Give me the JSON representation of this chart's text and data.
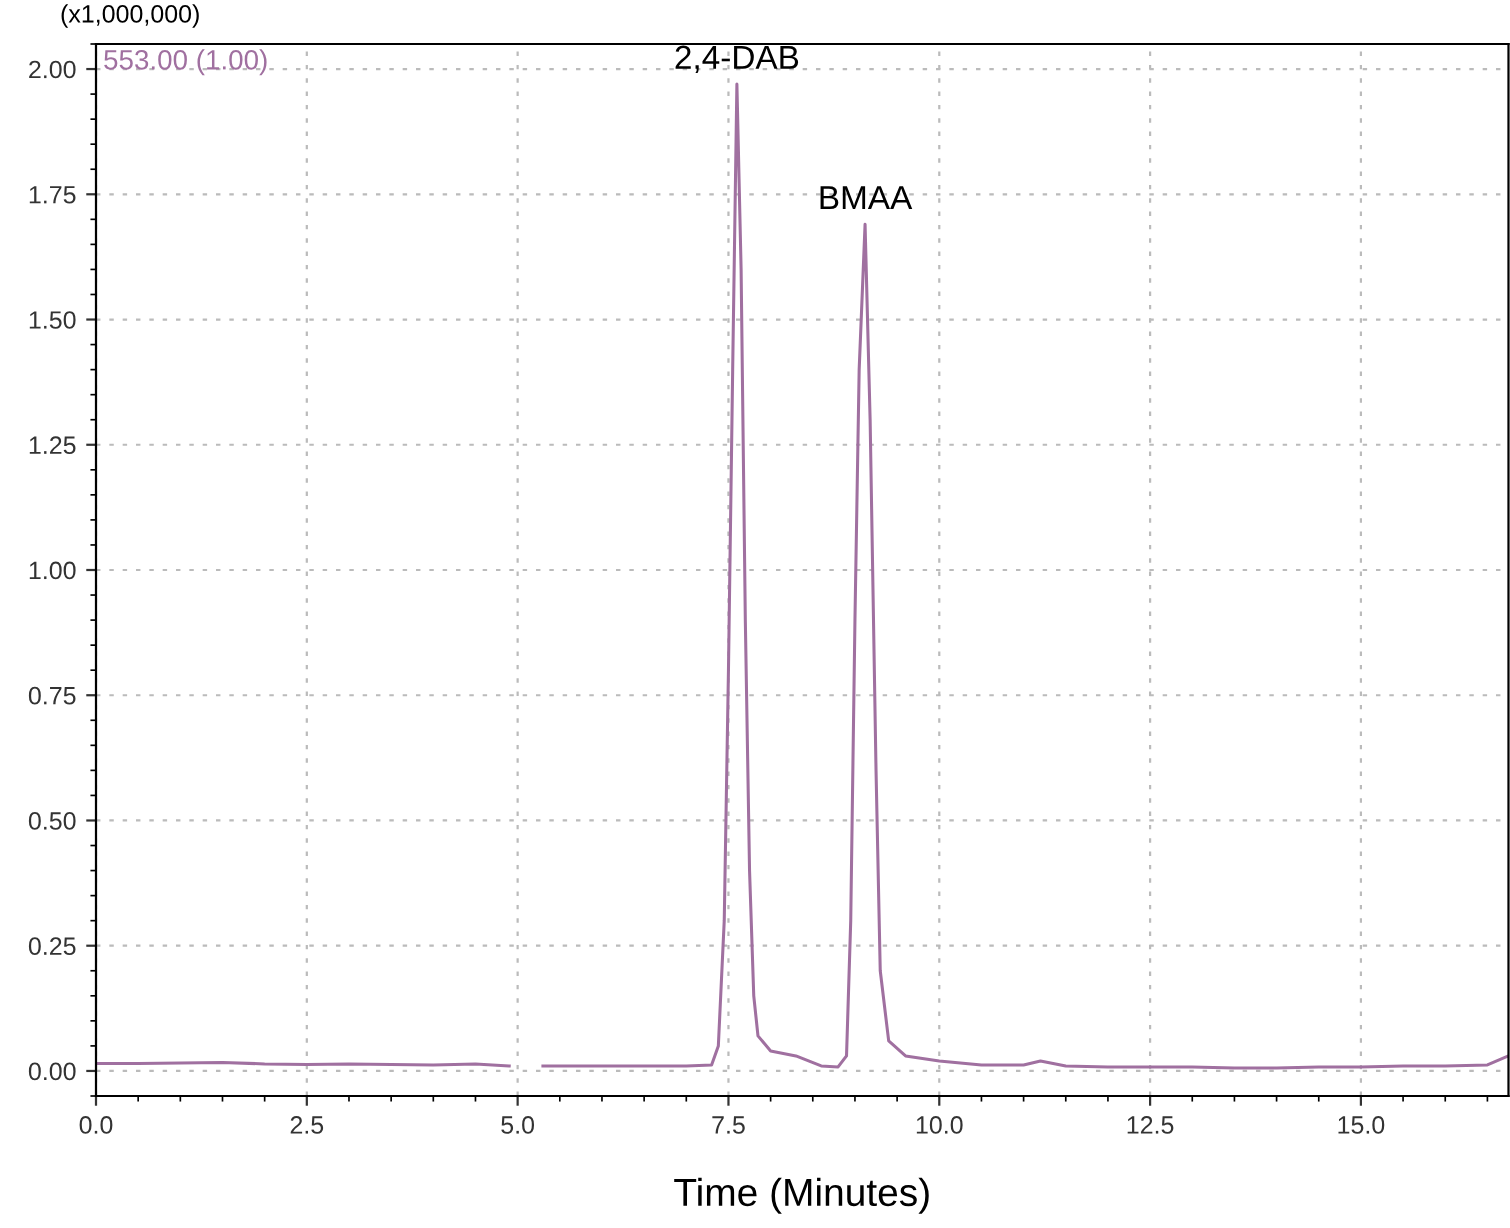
{
  "chart_data": {
    "type": "line",
    "xlabel": "Time (Minutes)",
    "annotations": [
      "(x1,000,000)",
      {
        "text": "2,4-DAB",
        "x": 7.6,
        "y": 1.97
      },
      {
        "text": "BMAA",
        "x": 9.12,
        "y": 1.69
      }
    ],
    "x": [
      0,
      0.5,
      1,
      1.5,
      2,
      2.5,
      3,
      3.5,
      4,
      4.5,
      4.9,
      5.0,
      5.3,
      5.8,
      6.5,
      7.0,
      7.3,
      7.38,
      7.45,
      7.5,
      7.55,
      7.6,
      7.65,
      7.7,
      7.75,
      7.8,
      7.85,
      8.0,
      8.3,
      8.6,
      8.8,
      8.9,
      8.95,
      9.0,
      9.05,
      9.12,
      9.18,
      9.25,
      9.3,
      9.4,
      9.6,
      10,
      10.5,
      11,
      11.2,
      11.5,
      12,
      12.5,
      13,
      13.5,
      14,
      14.5,
      15,
      15.5,
      16,
      16.5,
      16.75
    ],
    "series": [
      {
        "name": "553.00 (1.00)",
        "color": "#a070a0",
        "values": [
          0.015,
          0.015,
          0.016,
          0.017,
          0.014,
          0.013,
          0.014,
          0.013,
          0.012,
          0.014,
          0.01,
          null,
          0.01,
          0.01,
          0.01,
          0.01,
          0.012,
          0.05,
          0.3,
          0.8,
          1.4,
          1.97,
          1.6,
          0.9,
          0.4,
          0.15,
          0.07,
          0.04,
          0.03,
          0.01,
          0.008,
          0.03,
          0.3,
          0.9,
          1.4,
          1.69,
          1.3,
          0.6,
          0.2,
          0.06,
          0.03,
          0.02,
          0.012,
          0.012,
          0.02,
          0.01,
          0.008,
          0.008,
          0.008,
          0.006,
          0.006,
          0.008,
          0.008,
          0.01,
          0.01,
          0.012,
          0.03
        ]
      }
    ],
    "xlim": [
      0,
      16.75
    ],
    "ylim": [
      -0.05,
      2.05
    ],
    "xticks": [
      {
        "value": 0,
        "label": "0.0"
      },
      {
        "value": 2.5,
        "label": "2.5"
      },
      {
        "value": 5,
        "label": "5.0"
      },
      {
        "value": 7.5,
        "label": "7.5"
      },
      {
        "value": 10,
        "label": "10.0"
      },
      {
        "value": 12.5,
        "label": "12.5"
      },
      {
        "value": 15,
        "label": "15.0"
      }
    ],
    "yticks": [
      {
        "value": 0,
        "label": "0.00"
      },
      {
        "value": 0.25,
        "label": "0.25"
      },
      {
        "value": 0.5,
        "label": "0.50"
      },
      {
        "value": 0.75,
        "label": "0.75"
      },
      {
        "value": 1,
        "label": "1.00"
      },
      {
        "value": 1.25,
        "label": "1.25"
      },
      {
        "value": 1.5,
        "label": "1.50"
      },
      {
        "value": 1.75,
        "label": "1.75"
      },
      {
        "value": 2,
        "label": "2.00"
      }
    ],
    "grid": true,
    "marker": "none",
    "line_style": "solid"
  }
}
